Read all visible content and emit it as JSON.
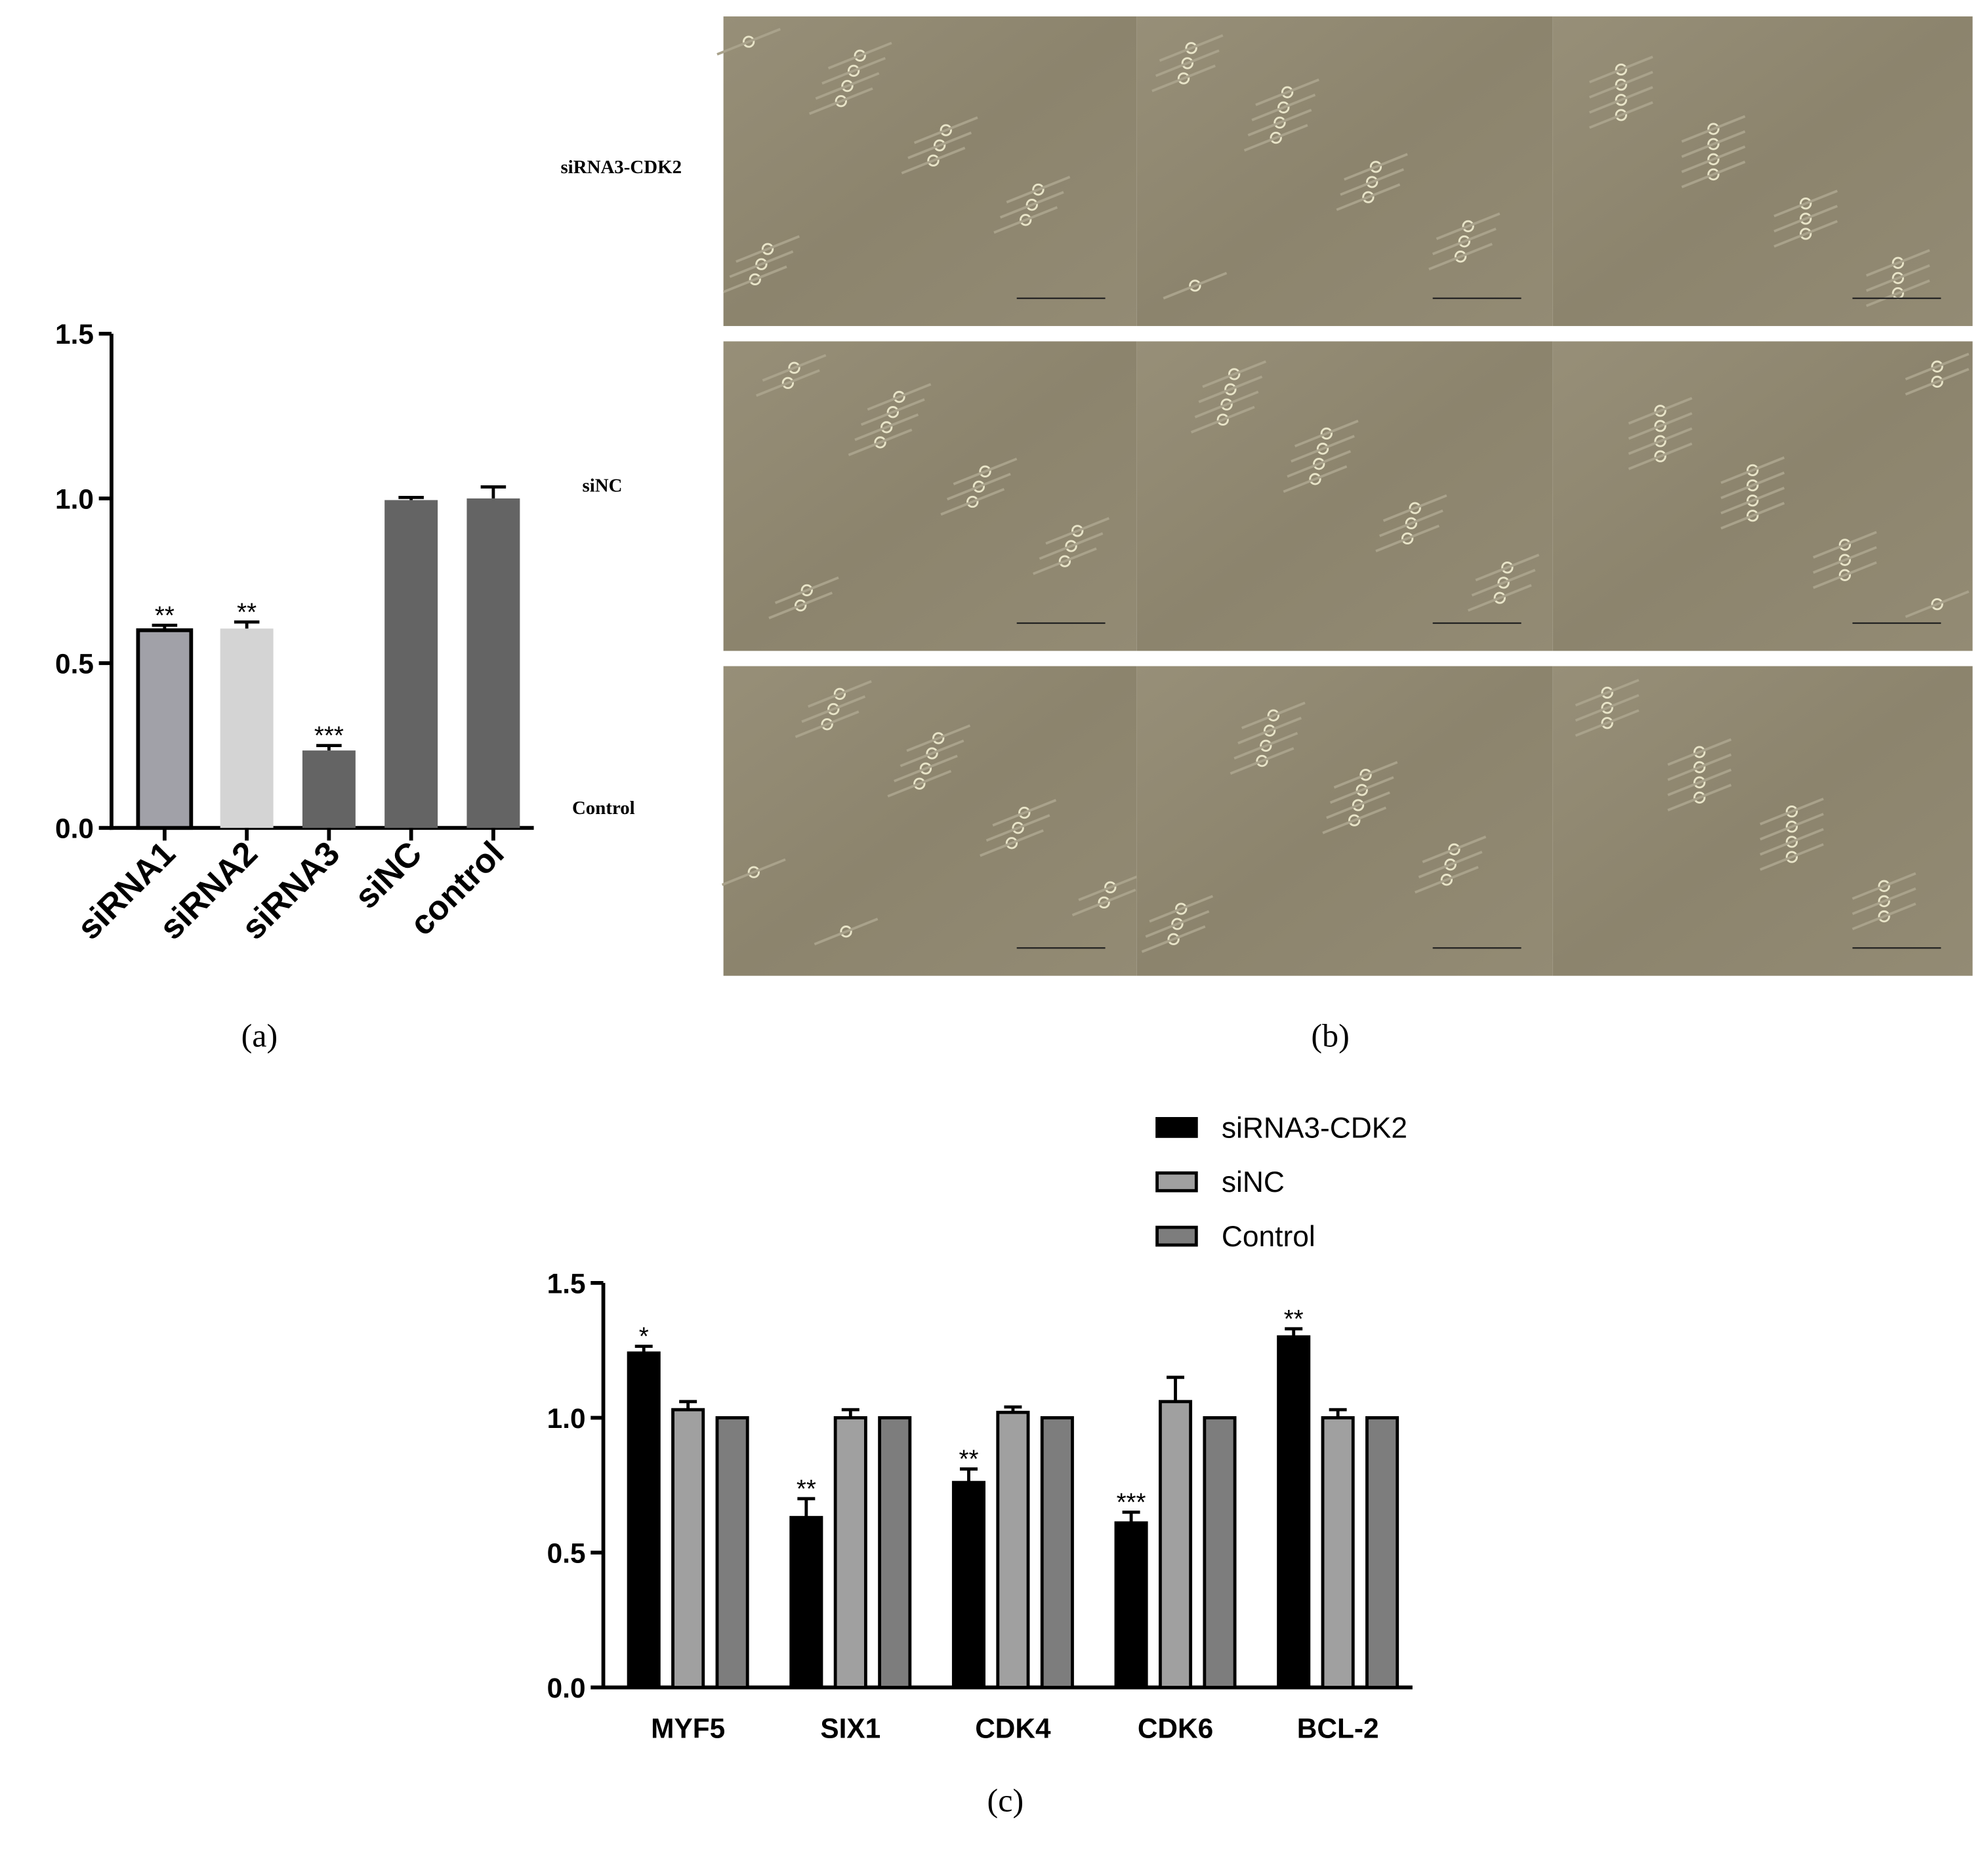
{
  "chart_data": [
    {
      "type": "bar",
      "panel_label": "(a)",
      "categories": [
        "siRNA1",
        "siRNA2",
        "siRNA3",
        "siNC",
        "control"
      ],
      "values": [
        0.6,
        0.605,
        0.235,
        0.995,
        1.0
      ],
      "errors": [
        0.015,
        0.02,
        0.015,
        0.008,
        0.035
      ],
      "annotations": [
        "**",
        "**",
        "***",
        null,
        null
      ],
      "colors": [
        "#a1a1a8",
        "#d4d4d4",
        "#646464",
        "#646464",
        "#646464"
      ],
      "ylim": [
        0,
        1.5
      ],
      "yticks": [
        {
          "value": 0,
          "label": "0.0"
        },
        0.5,
        {
          "value": 1,
          "label": "1.0"
        },
        1.5
      ]
    },
    {
      "type": "grouped_bar",
      "panel_label": "(c)",
      "categories": [
        "MYF5",
        "SIX1",
        "CDK4",
        "CDK6",
        "BCL-2"
      ],
      "series": [
        {
          "name": "siRNA3-CDK2",
          "color": "#000000",
          "values": [
            1.24,
            0.63,
            0.76,
            0.61,
            1.3
          ],
          "errors": [
            0.025,
            0.07,
            0.05,
            0.04,
            0.03
          ],
          "annotations": [
            "*",
            "**",
            "**",
            "***",
            "**"
          ]
        },
        {
          "name": "siNC",
          "color": "#a0a0a0",
          "values": [
            1.03,
            1.0,
            1.02,
            1.06,
            1.0
          ],
          "errors": [
            0.03,
            0.03,
            0.02,
            0.09,
            0.03
          ]
        },
        {
          "name": "Control",
          "color": "#7d7d7d",
          "values": [
            1,
            1,
            1,
            1,
            1
          ],
          "errors": [
            0,
            0,
            0,
            0,
            0
          ]
        }
      ],
      "ylim": [
        0,
        1.5
      ],
      "yticks": [
        {
          "value": 0,
          "label": "0.0"
        },
        0.5,
        {
          "value": 1,
          "label": "1.0"
        },
        1.5
      ]
    }
  ],
  "panel_b": {
    "panel_label": "(b)",
    "row_labels": [
      "siRNA3-CDK2",
      "siNC",
      "Control"
    ]
  }
}
